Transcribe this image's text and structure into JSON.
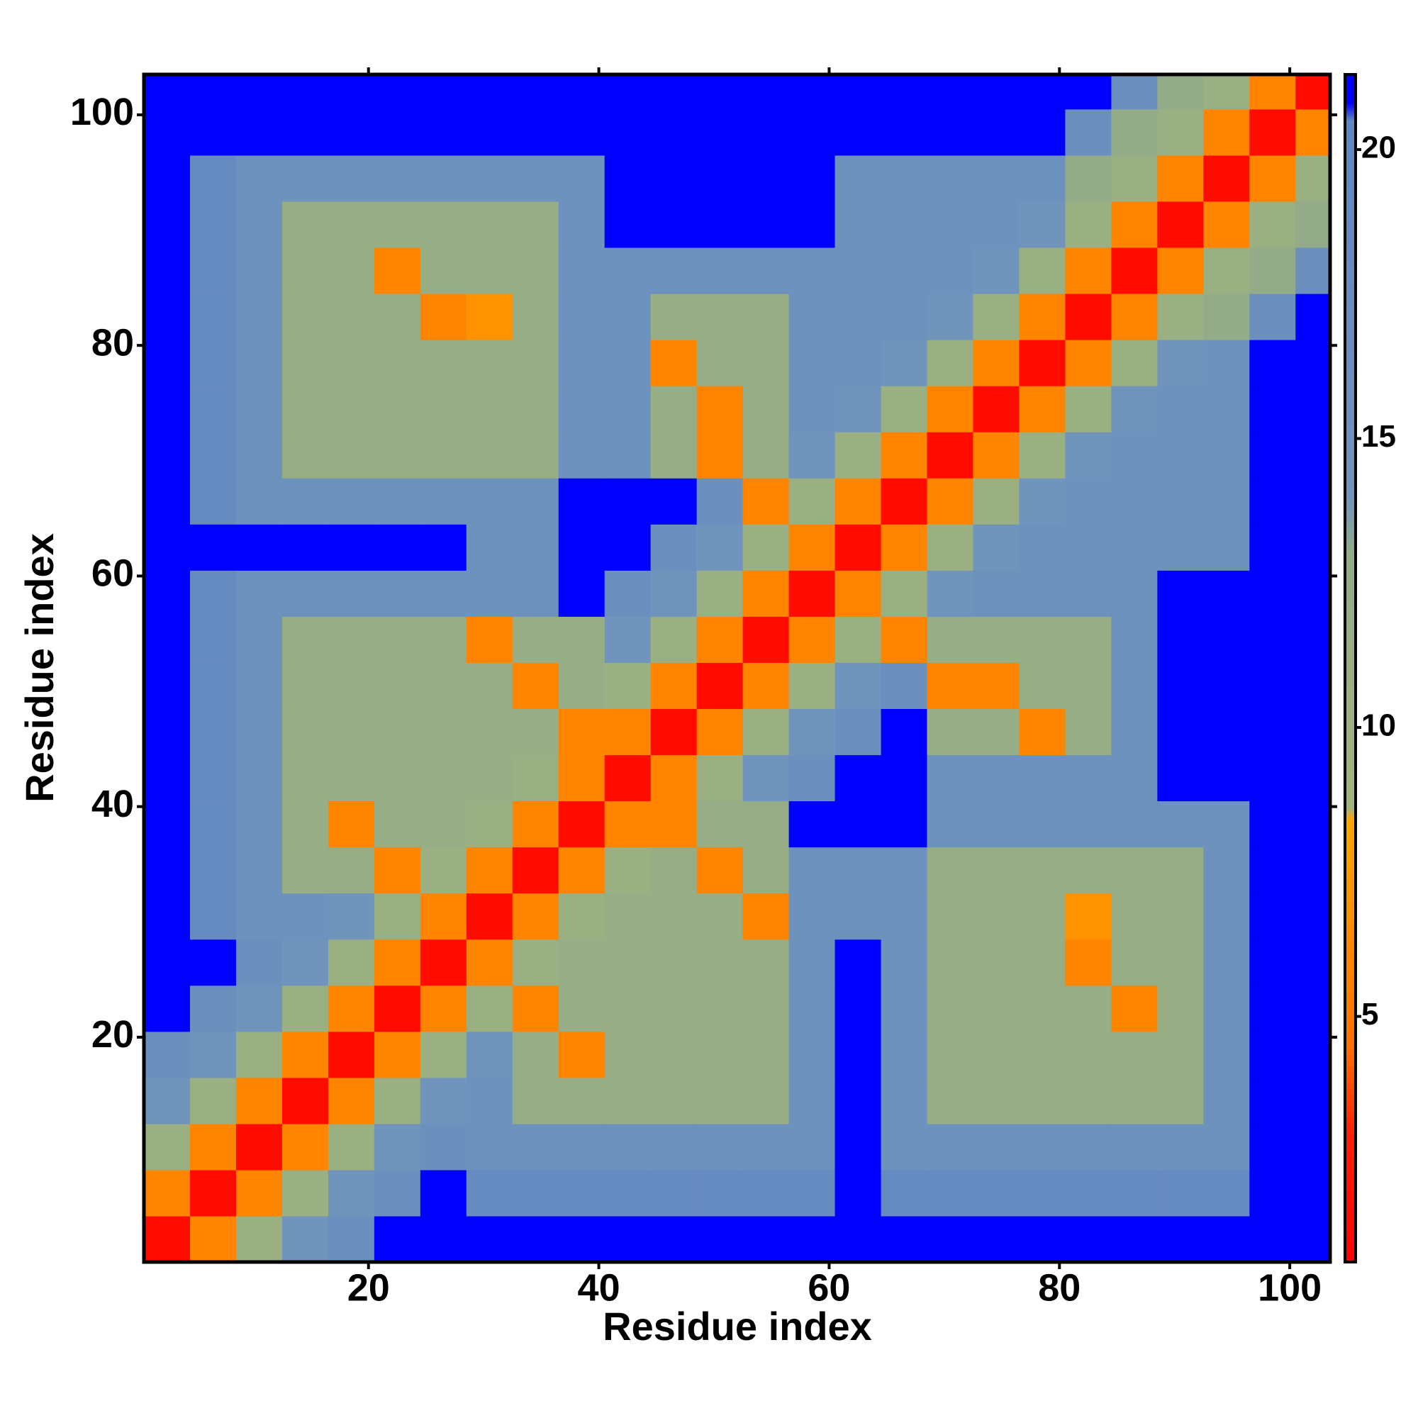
{
  "chart_data": {
    "type": "heatmap",
    "x_label": "Residue index",
    "y_label": "Residue index",
    "xlim": [
      0.5,
      103.5
    ],
    "ylim": [
      0.5,
      103.5
    ],
    "xticks": [
      20,
      40,
      60,
      80,
      100
    ],
    "yticks": [
      20,
      40,
      60,
      80,
      100
    ],
    "zlim": [
      0.75,
      21.3
    ],
    "zticks": [
      5,
      10,
      15,
      20
    ],
    "colorscale": [
      {
        "value": 0.75,
        "color": "#ff0000"
      },
      {
        "value": 3,
        "color": "#ff2000"
      },
      {
        "value": 4.5,
        "color": "#ff7000"
      },
      {
        "value": 8.4,
        "color": "#ffa500"
      },
      {
        "value": 8.6,
        "color": "#a3b47a"
      },
      {
        "value": 13,
        "color": "#93ab88"
      },
      {
        "value": 14,
        "color": "#7094bc"
      },
      {
        "value": 20.5,
        "color": "#5f86c2"
      },
      {
        "value": 20.8,
        "color": "#0000ff"
      },
      {
        "value": 21.3,
        "color": "#0000ff"
      }
    ],
    "x_edges": [
      0.5,
      4.5,
      8.5,
      12.5,
      16.5,
      20.5,
      24.5,
      28.5,
      32.5,
      36.5,
      40.5,
      44.5,
      48.5,
      52.5,
      56.5,
      60.5,
      64.5,
      68.5,
      72.5,
      76.5,
      80.5,
      84.5,
      88.5,
      92.5,
      96.5,
      100.5,
      103.5
    ],
    "y_edges": [
      0.5,
      4.5,
      8.5,
      12.5,
      16.5,
      20.5,
      24.5,
      28.5,
      32.5,
      36.5,
      40.5,
      44.5,
      48.5,
      52.5,
      56.5,
      60.5,
      64.5,
      68.5,
      72.5,
      76.5,
      80.5,
      84.5,
      88.5,
      92.5,
      96.5,
      100.5,
      103.5
    ],
    "z": [
      [
        1.5,
        6,
        11,
        14,
        16,
        21,
        21,
        21,
        21,
        21,
        21,
        21,
        21,
        21,
        21,
        21,
        21,
        21,
        21,
        21,
        21,
        21,
        21,
        21,
        21,
        21
      ],
      [
        6,
        1.5,
        6,
        11,
        14,
        16,
        21,
        18,
        18,
        18,
        18,
        18,
        18,
        18,
        18,
        21,
        18,
        18,
        18,
        18,
        18,
        18,
        18,
        18,
        21,
        21
      ],
      [
        11,
        6,
        1.5,
        6,
        11,
        14,
        16,
        15,
        15,
        15,
        15,
        15,
        15,
        15,
        15,
        21,
        15,
        15,
        15,
        15,
        15,
        15,
        15,
        15,
        21,
        21
      ],
      [
        14,
        11,
        6,
        1.5,
        6,
        11,
        14,
        15,
        12,
        12,
        12,
        12,
        12,
        12,
        15,
        21,
        15,
        12,
        12,
        12,
        12,
        12,
        12,
        15,
        21,
        21
      ],
      [
        16,
        14,
        11,
        6,
        1.5,
        6,
        11,
        14,
        12,
        6,
        12,
        12,
        12,
        12,
        15,
        21,
        15,
        12,
        12,
        12,
        12,
        12,
        12,
        15,
        21,
        21
      ],
      [
        21,
        16,
        14,
        11,
        6,
        1.5,
        6,
        11,
        6,
        12,
        12,
        12,
        12,
        12,
        15,
        21,
        15,
        12,
        12,
        12,
        12,
        6,
        12,
        15,
        21,
        21
      ],
      [
        21,
        21,
        16,
        14,
        11,
        6,
        1.5,
        6,
        11,
        12,
        12,
        12,
        12,
        12,
        15,
        21,
        15,
        12,
        12,
        12,
        6,
        12,
        12,
        15,
        21,
        21
      ],
      [
        21,
        18,
        15,
        15,
        14,
        11,
        6,
        1.5,
        6,
        11,
        12,
        12,
        12,
        6,
        15,
        15,
        15,
        12,
        12,
        12,
        7,
        12,
        12,
        15,
        21,
        21
      ],
      [
        21,
        18,
        15,
        12,
        12,
        6,
        11,
        6,
        1.5,
        6,
        11,
        12,
        6,
        12,
        15,
        15,
        15,
        12,
        12,
        12,
        12,
        12,
        12,
        15,
        21,
        21
      ],
      [
        21,
        18,
        15,
        12,
        6,
        12,
        12,
        11,
        6,
        1.5,
        6,
        6,
        12,
        12,
        21,
        21,
        21,
        15,
        15,
        15,
        15,
        15,
        15,
        15,
        21,
        21
      ],
      [
        21,
        18,
        15,
        12,
        12,
        12,
        12,
        12,
        11,
        6,
        1.5,
        6,
        11,
        14,
        16,
        21,
        21,
        15,
        15,
        15,
        15,
        15,
        21,
        21,
        21,
        21
      ],
      [
        21,
        18,
        15,
        12,
        12,
        12,
        12,
        12,
        12,
        6,
        6,
        1.5,
        6,
        11,
        14,
        16,
        21,
        12,
        12,
        6,
        12,
        15,
        21,
        21,
        21,
        21
      ],
      [
        21,
        18,
        15,
        12,
        12,
        12,
        12,
        12,
        6,
        12,
        11,
        6,
        1.5,
        6,
        11,
        14,
        16,
        6,
        6,
        12,
        12,
        15,
        21,
        21,
        21,
        21
      ],
      [
        21,
        18,
        15,
        12,
        12,
        12,
        12,
        6,
        12,
        12,
        14,
        11,
        6,
        1.5,
        6,
        11,
        6,
        12,
        12,
        12,
        12,
        15,
        21,
        21,
        21,
        21
      ],
      [
        21,
        18,
        15,
        15,
        15,
        15,
        15,
        15,
        15,
        21,
        16,
        14,
        11,
        6,
        1.5,
        6,
        11,
        14,
        15,
        15,
        15,
        15,
        21,
        21,
        21,
        21
      ],
      [
        21,
        21,
        21,
        21,
        21,
        21,
        21,
        15,
        15,
        21,
        21,
        16,
        14,
        11,
        6,
        1.5,
        6,
        11,
        14,
        15,
        15,
        15,
        15,
        15,
        21,
        21
      ],
      [
        21,
        18,
        15,
        15,
        15,
        15,
        15,
        15,
        15,
        21,
        21,
        21,
        16,
        6,
        11,
        6,
        1.5,
        6,
        11,
        14,
        15,
        15,
        15,
        15,
        21,
        21
      ],
      [
        21,
        18,
        15,
        12,
        12,
        12,
        12,
        12,
        12,
        15,
        15,
        12,
        6,
        12,
        14,
        11,
        6,
        1.5,
        6,
        11,
        14,
        15,
        15,
        15,
        21,
        21
      ],
      [
        21,
        18,
        15,
        12,
        12,
        12,
        12,
        12,
        12,
        15,
        15,
        12,
        6,
        12,
        15,
        14,
        11,
        6,
        1.5,
        6,
        11,
        14,
        15,
        15,
        21,
        21
      ],
      [
        21,
        18,
        15,
        12,
        12,
        12,
        12,
        12,
        12,
        15,
        15,
        6,
        12,
        12,
        15,
        15,
        14,
        11,
        6,
        1.5,
        6,
        11,
        14,
        15,
        21,
        21
      ],
      [
        21,
        18,
        15,
        12,
        12,
        12,
        6,
        7,
        12,
        15,
        15,
        12,
        12,
        12,
        15,
        15,
        15,
        14,
        11,
        6,
        1.5,
        6,
        11,
        13,
        16,
        21
      ],
      [
        21,
        18,
        15,
        12,
        12,
        6,
        12,
        12,
        12,
        15,
        15,
        15,
        15,
        15,
        15,
        15,
        15,
        15,
        14,
        11,
        6,
        1.5,
        6,
        11,
        13,
        16
      ],
      [
        21,
        18,
        15,
        12,
        12,
        12,
        12,
        12,
        12,
        15,
        21,
        21,
        21,
        21,
        21,
        15,
        15,
        15,
        15,
        14,
        11,
        6,
        1.5,
        6,
        11,
        13
      ],
      [
        21,
        18,
        15,
        15,
        15,
        15,
        15,
        15,
        15,
        15,
        21,
        21,
        21,
        21,
        21,
        15,
        15,
        15,
        15,
        15,
        13,
        11,
        6,
        1.5,
        6,
        11
      ],
      [
        21,
        21,
        21,
        21,
        21,
        21,
        21,
        21,
        21,
        21,
        21,
        21,
        21,
        21,
        21,
        21,
        21,
        21,
        21,
        21,
        16,
        13,
        11,
        6,
        1.5,
        6
      ],
      [
        21,
        21,
        21,
        21,
        21,
        21,
        21,
        21,
        21,
        21,
        21,
        21,
        21,
        21,
        21,
        21,
        21,
        21,
        21,
        21,
        21,
        16,
        13,
        11,
        6,
        1.5
      ]
    ]
  }
}
